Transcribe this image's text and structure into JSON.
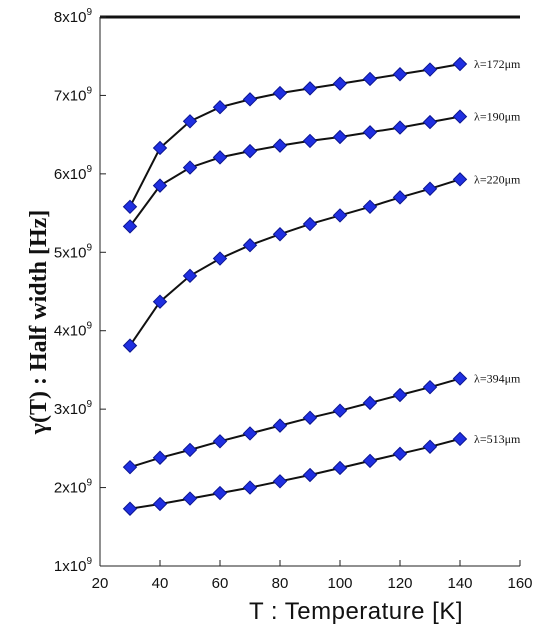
{
  "chart_data": {
    "type": "line",
    "xlabel": "T : Temperature [K]",
    "ylabel": "γ(T) : Half width [Hz]",
    "xlim": [
      20,
      160
    ],
    "ylim": [
      1000000000,
      8000000000
    ],
    "x_ticks": [
      "20",
      "40",
      "60",
      "80",
      "100",
      "120",
      "140",
      "160"
    ],
    "y_ticks": [
      {
        "value": 1000000000,
        "mantissa": "1x10",
        "exp": "9"
      },
      {
        "value": 2000000000,
        "mantissa": "2x10",
        "exp": "9"
      },
      {
        "value": 3000000000,
        "mantissa": "3x10",
        "exp": "9"
      },
      {
        "value": 4000000000,
        "mantissa": "4x10",
        "exp": "9"
      },
      {
        "value": 5000000000,
        "mantissa": "5x10",
        "exp": "9"
      },
      {
        "value": 6000000000,
        "mantissa": "6x10",
        "exp": "9"
      },
      {
        "value": 7000000000,
        "mantissa": "7x10",
        "exp": "9"
      },
      {
        "value": 8000000000,
        "mantissa": "8x10",
        "exp": "9"
      }
    ],
    "grid": false,
    "marker": "diamond",
    "colors": {
      "marker": "#1f2fe0",
      "marker_edge": "#0b1590",
      "line": "#111111"
    },
    "x": [
      30,
      40,
      50,
      60,
      70,
      80,
      90,
      100,
      110,
      120,
      130,
      140
    ],
    "series": [
      {
        "name": "λ=172μm",
        "values": [
          5580000000,
          6330000000,
          6670000000,
          6850000000,
          6950000000,
          7030000000,
          7090000000,
          7150000000,
          7210000000,
          7270000000,
          7330000000,
          7400000000
        ]
      },
      {
        "name": "λ=190μm",
        "values": [
          5330000000,
          5850000000,
          6080000000,
          6210000000,
          6290000000,
          6360000000,
          6420000000,
          6470000000,
          6530000000,
          6590000000,
          6660000000,
          6730000000
        ]
      },
      {
        "name": "λ=220μm",
        "values": [
          3810000000,
          4370000000,
          4700000000,
          4920000000,
          5090000000,
          5230000000,
          5360000000,
          5470000000,
          5580000000,
          5700000000,
          5810000000,
          5930000000
        ]
      },
      {
        "name": "λ=394μm",
        "values": [
          2260000000,
          2380000000,
          2480000000,
          2590000000,
          2690000000,
          2790000000,
          2890000000,
          2980000000,
          3080000000,
          3180000000,
          3280000000,
          3390000000
        ]
      },
      {
        "name": "λ=513μm",
        "values": [
          1730000000,
          1790000000,
          1860000000,
          1930000000,
          2000000000,
          2080000000,
          2160000000,
          2250000000,
          2340000000,
          2430000000,
          2520000000,
          2620000000
        ]
      }
    ]
  }
}
